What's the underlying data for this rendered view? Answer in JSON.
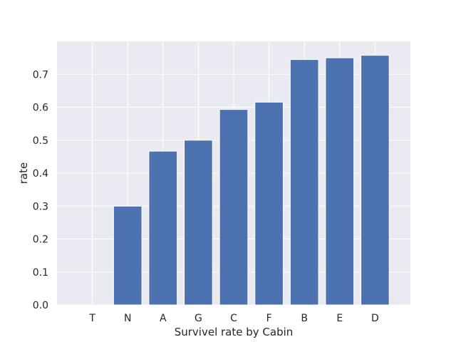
{
  "chart_data": {
    "type": "bar",
    "title": "",
    "xlabel": "Survivel rate by Cabin",
    "ylabel": "rate",
    "categories": [
      "T",
      "N",
      "A",
      "G",
      "C",
      "F",
      "B",
      "E",
      "D"
    ],
    "values": [
      0.0,
      0.2999,
      0.4667,
      0.5,
      0.5932,
      0.6154,
      0.7447,
      0.75,
      0.7576
    ],
    "ylim": [
      0,
      0.8
    ],
    "yticks": [
      "0.0",
      "0.1",
      "0.2",
      "0.3",
      "0.4",
      "0.5",
      "0.6",
      "0.7"
    ],
    "grid": true,
    "bar_color": "#4c72b0",
    "background_color": "#eaeaf2"
  }
}
